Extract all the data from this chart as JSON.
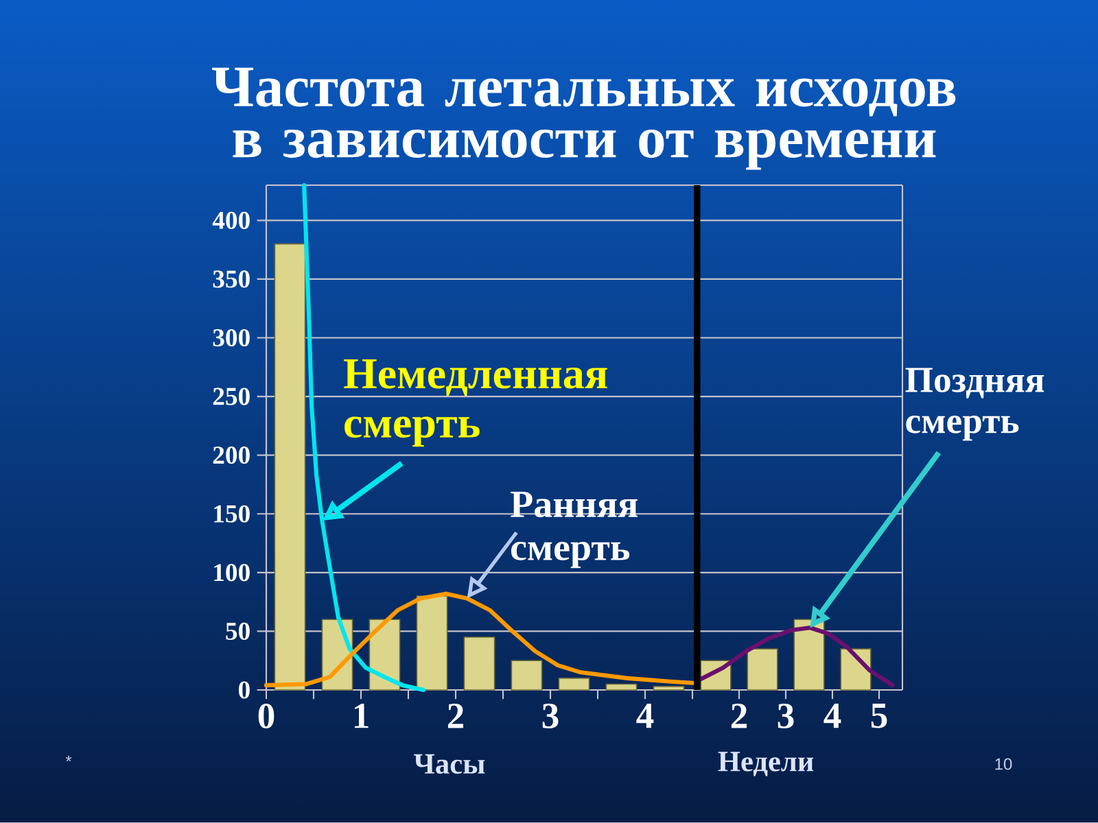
{
  "chart_data": [
    {
      "type": "histogram",
      "title": "Частота летальных исходов в зависимости от времени",
      "xlabel": "Часы",
      "series": [
        {
          "bins": [
            0,
            0.5,
            1,
            1.5,
            2,
            2.5,
            3,
            3.5,
            4,
            4.5
          ],
          "values": [
            380,
            60,
            60,
            80,
            45,
            25,
            10,
            5,
            3
          ],
          "color": "#dcd68c"
        },
        {
          "type": "line",
          "x": [
            0.4,
            0.45,
            0.48,
            0.53,
            0.59,
            0.67,
            0.76,
            0.88,
            1.05,
            1.25,
            1.44,
            1.66
          ],
          "values": [
            430,
            319,
            241,
            183,
            144,
            105,
            62,
            35,
            19,
            11,
            4,
            0
          ],
          "color": "#00e5ee"
        },
        {
          "type": "line",
          "x": [
            0,
            0.42,
            0.67,
            0.91,
            1.15,
            1.39,
            1.63,
            1.9,
            2.12,
            2.36,
            2.6,
            2.84,
            3.08,
            3.32,
            3.81,
            4.29,
            4.5
          ],
          "values": [
            4,
            5,
            11,
            31,
            50,
            68,
            78,
            82,
            78,
            68,
            50,
            33,
            21,
            15,
            10,
            7,
            6
          ],
          "color": "#ff9900"
        }
      ],
      "xlim": [
        0,
        4.5
      ],
      "ylim": [
        0,
        430
      ],
      "xticks": [
        0,
        {
          "value": 0.5,
          "label": null
        },
        1,
        {
          "value": 1.5,
          "label": null
        },
        2,
        {
          "value": 2.5,
          "label": null
        },
        3,
        {
          "value": 3.5,
          "label": null
        },
        4,
        {
          "value": 4.5,
          "label": null
        }
      ],
      "yticks": [
        0,
        50,
        100,
        150,
        200,
        250,
        300,
        350,
        400
      ],
      "grid": "y",
      "annotations": [
        {
          "text": "Немедленная смерть",
          "x": 0.59,
          "y": 144
        },
        {
          "text": "Ранняя смерть",
          "x": 2.12,
          "y": 78
        },
        "*",
        "10"
      ]
    },
    {
      "type": "histogram",
      "xlabel": "Недели",
      "series": [
        {
          "bins": [
            1,
            2,
            3,
            4,
            5
          ],
          "values": [
            25,
            35,
            60,
            35
          ],
          "color": "#dcd68c"
        },
        {
          "type": "line",
          "x": [
            1.17,
            1.66,
            2.15,
            2.64,
            3.13,
            3.52,
            3.91,
            4.3,
            4.79,
            5.29
          ],
          "values": [
            9,
            19,
            33,
            44,
            51,
            53,
            48,
            37,
            17,
            4
          ],
          "color": "#6a106e"
        }
      ],
      "xlim": [
        1,
        5.5
      ],
      "ylim": [
        0,
        430
      ],
      "xticks": [
        2,
        3,
        4,
        5
      ],
      "yticks": [
        0,
        50,
        100,
        150,
        200,
        250,
        300,
        350,
        400
      ],
      "grid": "y",
      "tick_labels": "x",
      "ref_lines": [
        {
          "axis": "x",
          "value": 1.1,
          "color": "#000000"
        }
      ],
      "annotations": [
        "Поздняя смерть"
      ]
    }
  ]
}
